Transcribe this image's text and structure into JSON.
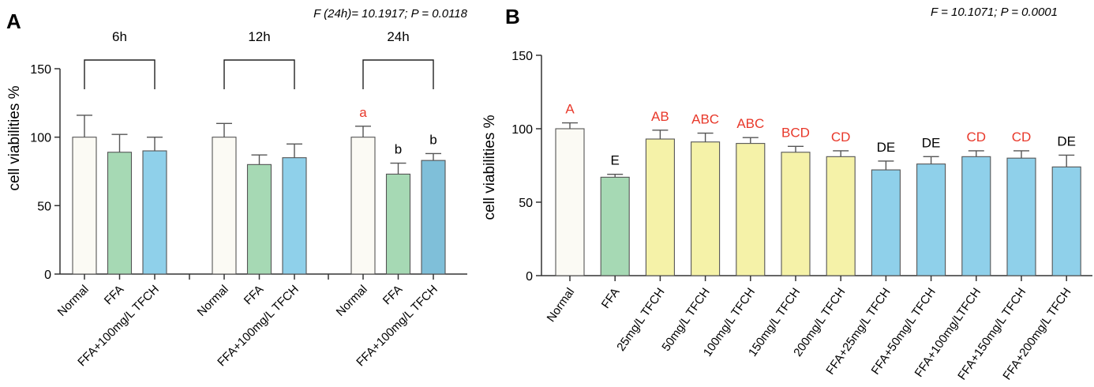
{
  "chart_data": [
    {
      "type": "bar",
      "panel": "A",
      "stat_text": "F (24h)= 10.1917;  P = 0.0118",
      "ylabel": "cell viabilities %",
      "ylim": [
        0,
        150
      ],
      "yticks": [
        "0",
        "50",
        "100",
        "150"
      ],
      "groups": [
        {
          "label": "6h",
          "bars": [
            {
              "category": "Normal",
              "value": 100,
              "error": 16,
              "color": "#fbfaf4",
              "letter": ""
            },
            {
              "category": "FFA",
              "value": 89,
              "error": 13,
              "color": "#a6d9b4",
              "letter": ""
            },
            {
              "category": "FFA+100mg/L TFCH",
              "value": 90,
              "error": 10,
              "color": "#8fd0ea",
              "letter": ""
            }
          ]
        },
        {
          "label": "12h",
          "bars": [
            {
              "category": "Normal",
              "value": 100,
              "error": 10,
              "color": "#fbfaf4",
              "letter": ""
            },
            {
              "category": "FFA",
              "value": 80,
              "error": 7,
              "color": "#a6d9b4",
              "letter": ""
            },
            {
              "category": "FFA+100mg/L TFCH",
              "value": 85,
              "error": 10,
              "color": "#8fd0ea",
              "letter": ""
            }
          ]
        },
        {
          "label": "24h",
          "bars": [
            {
              "category": "Normal",
              "value": 100,
              "error": 8,
              "color": "#fbfaf4",
              "letter": "a",
              "letter_color": "#e8382a"
            },
            {
              "category": "FFA",
              "value": 73,
              "error": 8,
              "color": "#a6d9b4",
              "letter": "b",
              "letter_color": "#000000"
            },
            {
              "category": "FFA+100mg/L TFCH",
              "value": 83,
              "error": 5,
              "color": "#7fbfd9",
              "letter": "b",
              "letter_color": "#000000"
            }
          ]
        }
      ]
    },
    {
      "type": "bar",
      "panel": "B",
      "stat_text": "F = 10.1071;  P = 0.0001",
      "ylabel": "cell viabilities %",
      "ylim": [
        0,
        150
      ],
      "yticks": [
        "0",
        "50",
        "100",
        "150"
      ],
      "bars": [
        {
          "category": "Normal",
          "value": 100,
          "error": 4,
          "color": "#fbfaf4",
          "letter": "A",
          "letter_color": "#e8382a"
        },
        {
          "category": "FFA",
          "value": 67,
          "error": 2,
          "color": "#a6d9b4",
          "letter": "E",
          "letter_color": "#000000"
        },
        {
          "category": "25mg/L TFCH",
          "value": 93,
          "error": 6,
          "color": "#f5f2a8",
          "letter": "AB",
          "letter_color": "#e8382a"
        },
        {
          "category": "50mg/L TFCH",
          "value": 91,
          "error": 6,
          "color": "#f5f2a8",
          "letter": "ABC",
          "letter_color": "#e8382a"
        },
        {
          "category": "100mg/L TFCH",
          "value": 90,
          "error": 4,
          "color": "#f5f2a8",
          "letter": "ABC",
          "letter_color": "#e8382a"
        },
        {
          "category": "150mg/L TFCH",
          "value": 84,
          "error": 4,
          "color": "#f5f2a8",
          "letter": "BCD",
          "letter_color": "#e8382a"
        },
        {
          "category": "200mg/L TFCH",
          "value": 81,
          "error": 4,
          "color": "#f5f2a8",
          "letter": "CD",
          "letter_color": "#e8382a"
        },
        {
          "category": "FFA+25mg/L TFCH",
          "value": 72,
          "error": 6,
          "color": "#8fd0ea",
          "letter": "DE",
          "letter_color": "#000000"
        },
        {
          "category": "FFA+50mg/L TFCH",
          "value": 76,
          "error": 5,
          "color": "#8fd0ea",
          "letter": "DE",
          "letter_color": "#000000"
        },
        {
          "category": "FFA+100mg/LTFCH",
          "value": 81,
          "error": 4,
          "color": "#8fd0ea",
          "letter": "CD",
          "letter_color": "#e8382a"
        },
        {
          "category": "FFA+150mg/L TFCH",
          "value": 80,
          "error": 5,
          "color": "#8fd0ea",
          "letter": "CD",
          "letter_color": "#e8382a"
        },
        {
          "category": "FFA+200mg/L TFCH",
          "value": 74,
          "error": 8,
          "color": "#8fd0ea",
          "letter": "DE",
          "letter_color": "#000000"
        }
      ]
    }
  ]
}
